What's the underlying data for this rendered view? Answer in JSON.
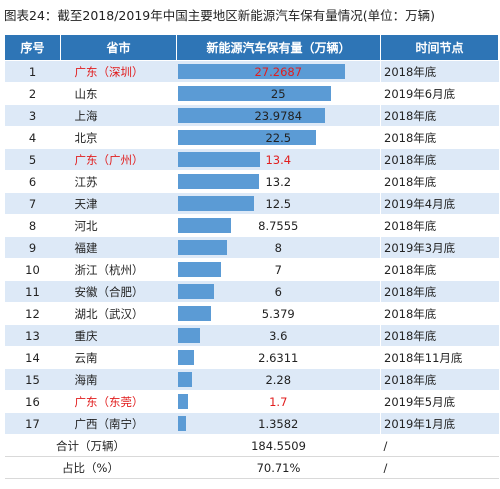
{
  "title": "图表24：截至2018/2019年中国主要地区新能源汽车保有量情况(单位：万辆)",
  "headers": [
    "序号",
    "省市",
    "新能源汽车保有量（万辆）",
    "时间节点"
  ],
  "highlight_color": "#e11d1d",
  "bar_color": "#5b9bd5",
  "header_color": "#2e75b6",
  "chart_data": {
    "type": "bar",
    "orientation": "horizontal",
    "title": "图表24：截至2018/2019年中国主要地区新能源汽车保有量情况(单位：万辆)",
    "categories": [
      "广东（深圳）",
      "山东",
      "上海",
      "北京",
      "广东（广州）",
      "江苏",
      "天津",
      "河北",
      "福建",
      "浙江（杭州）",
      "安徽（合肥）",
      "湖北（武汉）",
      "重庆",
      "云南",
      "海南",
      "广东（东莞）",
      "广西（南宁）"
    ],
    "values": [
      27.2687,
      25,
      23.9784,
      22.5,
      13.4,
      13.2,
      12.5,
      8.7555,
      8,
      7,
      6,
      5.379,
      3.6,
      2.6311,
      2.28,
      1.7,
      1.3582
    ],
    "value_labels": [
      "27.2687",
      "25",
      "23.9784",
      "22.5",
      "13.4",
      "13.2",
      "12.5",
      "8.7555",
      "8",
      "7",
      "6",
      "5.379",
      "3.6",
      "2.6311",
      "2.28",
      "1.7",
      "1.3582"
    ],
    "xlim": [
      0,
      28
    ],
    "rows": [
      {
        "seq": "1",
        "region": "广东（深圳）",
        "date": "2018年底",
        "highlight": true
      },
      {
        "seq": "2",
        "region": "山东",
        "date": "2019年6月底",
        "highlight": false
      },
      {
        "seq": "3",
        "region": "上海",
        "date": "2018年底",
        "highlight": false
      },
      {
        "seq": "4",
        "region": "北京",
        "date": "2018年底",
        "highlight": false
      },
      {
        "seq": "5",
        "region": "广东（广州）",
        "date": "2018年底",
        "highlight": true
      },
      {
        "seq": "6",
        "region": "江苏",
        "date": "2018年底",
        "highlight": false
      },
      {
        "seq": "7",
        "region": "天津",
        "date": "2019年4月底",
        "highlight": false
      },
      {
        "seq": "8",
        "region": "河北",
        "date": "2018年底",
        "highlight": false
      },
      {
        "seq": "9",
        "region": "福建",
        "date": "2019年3月底",
        "highlight": false
      },
      {
        "seq": "10",
        "region": "浙江（杭州）",
        "date": "2018年底",
        "highlight": false
      },
      {
        "seq": "11",
        "region": "安徽（合肥）",
        "date": "2018年底",
        "highlight": false
      },
      {
        "seq": "12",
        "region": "湖北（武汉）",
        "date": "2018年底",
        "highlight": false
      },
      {
        "seq": "13",
        "region": "重庆",
        "date": "2018年底",
        "highlight": false
      },
      {
        "seq": "14",
        "region": "云南",
        "date": "2018年11月底",
        "highlight": false
      },
      {
        "seq": "15",
        "region": "海南",
        "date": "2018年底",
        "highlight": false
      },
      {
        "seq": "16",
        "region": "广东（东莞）",
        "date": "2019年5月底",
        "highlight": true
      },
      {
        "seq": "17",
        "region": "广西（南宁）",
        "date": "2019年1月底",
        "highlight": false
      }
    ]
  },
  "totals": [
    {
      "label": "合计（万辆）",
      "value": "184.5509",
      "date": "/"
    },
    {
      "label": "占比（%）",
      "value": "70.71%",
      "date": "/"
    }
  ]
}
